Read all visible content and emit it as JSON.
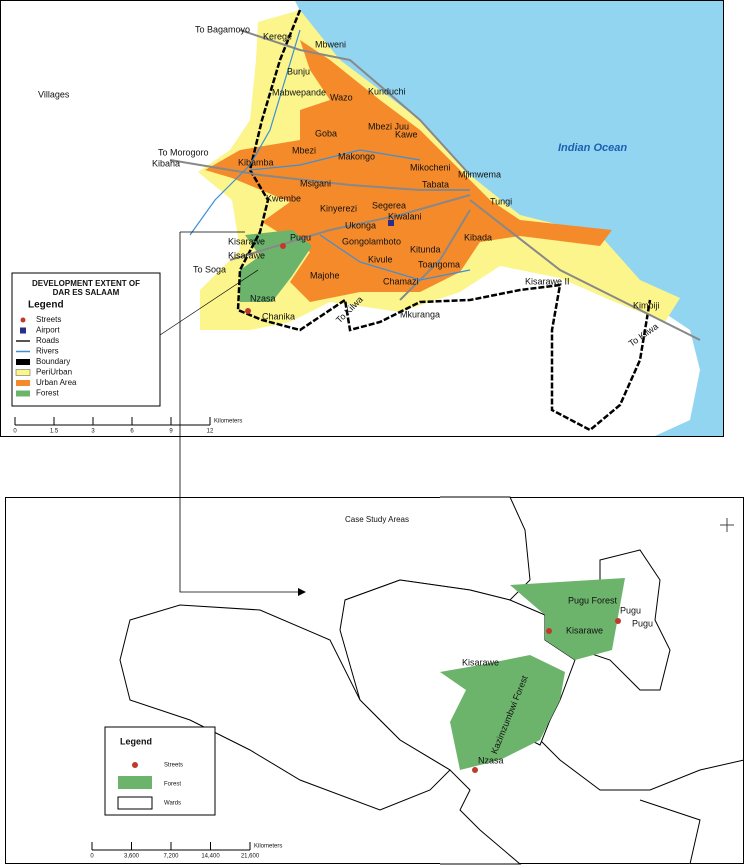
{
  "top_map": {
    "places": [
      "To Bagamoyo",
      "Kerege",
      "Mbweni",
      "Bunju",
      "Mabwepande",
      "Wazo",
      "Kunduchi",
      "Villages",
      "Mbezi Juu",
      "Goba",
      "Kawe",
      "To Morogoro",
      "Kibaha",
      "Kibamba",
      "Mbezi",
      "Makongo",
      "Mikocheni",
      "Msigani",
      "Tabata",
      "Kwembe",
      "Kinyerezi",
      "Segerea",
      "Kiwalani",
      "Tungi",
      "Mjimwema",
      "Ukonga",
      "Pugu",
      "Kisarawe",
      "Gongolamboto",
      "Kitunda",
      "Kibada",
      "Kisarawe",
      "Majohe",
      "Kivule",
      "Chamazi",
      "Toangoma",
      "Kisarawe II",
      "To Soga",
      "Nzasa",
      "Chanika",
      "Mkuranga",
      "To Kilwa",
      "Kimbiji",
      "To Kilwa"
    ],
    "ocean": "Indian Ocean",
    "legend": {
      "title": [
        "DEVELOPMENT EXTENT OF",
        "DAR ES SALAAM"
      ],
      "heading": "Legend",
      "items": [
        "Streets",
        "Airport",
        "Roads",
        "Rivers",
        "Boundary",
        "PeriUrban",
        "Urban Area",
        "Forest"
      ]
    },
    "scale": {
      "ticks": [
        "0",
        "1.5",
        "3",
        "6",
        "9",
        "12"
      ],
      "unit": "Kilometers"
    }
  },
  "bottom_map": {
    "title": "Case Study Areas",
    "places": [
      "Pugu Forest",
      "Pugu",
      "Pugu",
      "Kisarawe",
      "Kisarawe",
      "Kazimzumbwi Forest",
      "Nzasa"
    ],
    "legend": {
      "heading": "Legend",
      "items": [
        "Streets",
        "Forest",
        "Wards"
      ]
    },
    "scale": {
      "ticks": [
        "0",
        "3,600",
        "7,200",
        "14,400",
        "21,600"
      ],
      "unit": "Kilometers"
    }
  }
}
